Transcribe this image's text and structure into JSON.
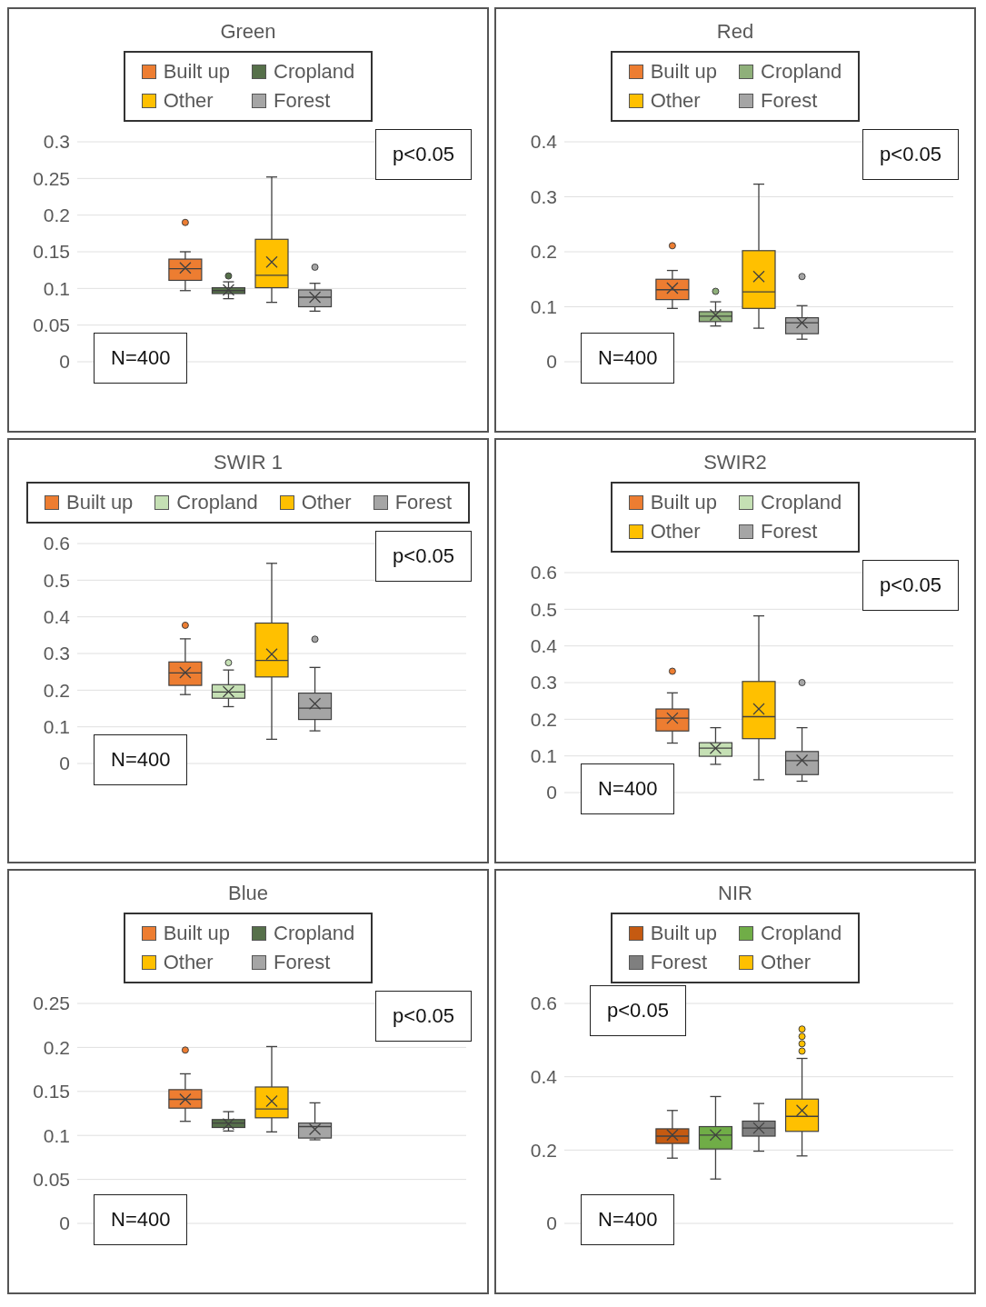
{
  "chart_data": [
    {
      "type": "box",
      "title": "Green",
      "categories": [
        null
      ],
      "ylim": [
        0,
        0.3
      ],
      "yticks": [
        0,
        0.05,
        0.1,
        0.15,
        0.2,
        0.25,
        0.3
      ],
      "grid": "y",
      "legend": "top",
      "annotations": [
        "p<0.05",
        "N=400"
      ],
      "series": [
        {
          "name": "Built up",
          "color": "#ed7d31",
          "boxes": [
            {
              "low": 0.097,
              "q1": 0.111,
              "median": 0.127,
              "q3": 0.14,
              "high": 0.15,
              "mean": 0.128,
              "outliers": [
                0.19
              ]
            }
          ]
        },
        {
          "name": "Cropland",
          "color": "#56704a",
          "boxes": [
            {
              "low": 0.086,
              "q1": 0.093,
              "median": 0.097,
              "q3": 0.101,
              "high": 0.109,
              "mean": 0.098,
              "outliers": [
                0.117
              ]
            }
          ]
        },
        {
          "name": "Other",
          "color": "#ffc000",
          "boxes": [
            {
              "low": 0.081,
              "q1": 0.101,
              "median": 0.118,
              "q3": 0.167,
              "high": 0.252,
              "mean": 0.136
            }
          ]
        },
        {
          "name": "Forest",
          "color": "#a5a5a5",
          "boxes": [
            {
              "low": 0.069,
              "q1": 0.075,
              "median": 0.088,
              "q3": 0.098,
              "high": 0.107,
              "mean": 0.088,
              "outliers": [
                0.129
              ]
            }
          ]
        }
      ]
    },
    {
      "type": "box",
      "title": "Red",
      "categories": [
        null
      ],
      "ylim": [
        0,
        0.4
      ],
      "yticks": [
        0,
        0.1,
        0.2,
        0.3,
        0.4
      ],
      "grid": "y",
      "legend": "top",
      "annotations": [
        "p<0.05",
        "N=400"
      ],
      "series": [
        {
          "name": "Built up",
          "color": "#ed7d31",
          "boxes": [
            {
              "low": 0.097,
              "q1": 0.113,
              "median": 0.131,
              "q3": 0.15,
              "high": 0.166,
              "mean": 0.134,
              "outliers": [
                0.211
              ]
            }
          ]
        },
        {
          "name": "Cropland",
          "color": "#8fb07a",
          "boxes": [
            {
              "low": 0.065,
              "q1": 0.073,
              "median": 0.083,
              "q3": 0.091,
              "high": 0.109,
              "mean": 0.085,
              "outliers": [
                0.128
              ]
            }
          ]
        },
        {
          "name": "Other",
          "color": "#ffc000",
          "boxes": [
            {
              "low": 0.061,
              "q1": 0.097,
              "median": 0.127,
              "q3": 0.202,
              "high": 0.323,
              "mean": 0.155
            }
          ]
        },
        {
          "name": "Forest",
          "color": "#a5a5a5",
          "boxes": [
            {
              "low": 0.041,
              "q1": 0.051,
              "median": 0.071,
              "q3": 0.08,
              "high": 0.102,
              "mean": 0.071,
              "outliers": [
                0.155
              ]
            }
          ]
        }
      ]
    },
    {
      "type": "box",
      "title": "SWIR 1",
      "categories": [
        null
      ],
      "ylim": [
        0,
        0.6
      ],
      "yticks": [
        0,
        0.1,
        0.2,
        0.3,
        0.4,
        0.5,
        0.6
      ],
      "grid": "y",
      "legend": "top",
      "annotations": [
        "p<0.05",
        "N=400"
      ],
      "series": [
        {
          "name": "Built up",
          "color": "#ed7d31",
          "boxes": [
            {
              "low": 0.188,
              "q1": 0.213,
              "median": 0.247,
              "q3": 0.277,
              "high": 0.34,
              "mean": 0.248,
              "outliers": [
                0.377
              ]
            }
          ]
        },
        {
          "name": "Cropland",
          "color": "#c5e0b4",
          "boxes": [
            {
              "low": 0.155,
              "q1": 0.178,
              "median": 0.195,
              "q3": 0.215,
              "high": 0.255,
              "mean": 0.196,
              "outliers": [
                0.275
              ]
            }
          ]
        },
        {
          "name": "Other",
          "color": "#ffc000",
          "boxes": [
            {
              "low": 0.066,
              "q1": 0.236,
              "median": 0.281,
              "q3": 0.383,
              "high": 0.546,
              "mean": 0.298
            }
          ]
        },
        {
          "name": "Forest",
          "color": "#a5a5a5",
          "boxes": [
            {
              "low": 0.089,
              "q1": 0.12,
              "median": 0.151,
              "q3": 0.192,
              "high": 0.262,
              "mean": 0.163,
              "outliers": [
                0.339
              ]
            }
          ]
        }
      ]
    },
    {
      "type": "box",
      "title": "SWIR2",
      "categories": [
        null
      ],
      "ylim": [
        0,
        0.6
      ],
      "yticks": [
        0,
        0.1,
        0.2,
        0.3,
        0.4,
        0.5,
        0.6
      ],
      "grid": "y",
      "legend": "top",
      "annotations": [
        "p<0.05",
        "N=400"
      ],
      "series": [
        {
          "name": "Built up",
          "color": "#ed7d31",
          "boxes": [
            {
              "low": 0.135,
              "q1": 0.168,
              "median": 0.203,
              "q3": 0.228,
              "high": 0.272,
              "mean": 0.203,
              "outliers": [
                0.331
              ]
            }
          ]
        },
        {
          "name": "Cropland",
          "color": "#c5e0b4",
          "boxes": [
            {
              "low": 0.077,
              "q1": 0.099,
              "median": 0.121,
              "q3": 0.136,
              "high": 0.177,
              "mean": 0.121
            }
          ]
        },
        {
          "name": "Other",
          "color": "#ffc000",
          "boxes": [
            {
              "low": 0.035,
              "q1": 0.147,
              "median": 0.207,
              "q3": 0.303,
              "high": 0.482,
              "mean": 0.228
            }
          ]
        },
        {
          "name": "Forest",
          "color": "#a5a5a5",
          "boxes": [
            {
              "low": 0.031,
              "q1": 0.049,
              "median": 0.087,
              "q3": 0.112,
              "high": 0.177,
              "mean": 0.088,
              "outliers": [
                0.3
              ]
            }
          ]
        }
      ]
    },
    {
      "type": "box",
      "title": "Blue",
      "categories": [
        null
      ],
      "ylim": [
        0,
        0.25
      ],
      "yticks": [
        0,
        0.05,
        0.1,
        0.15,
        0.2,
        0.25
      ],
      "grid": "y",
      "legend": "top",
      "annotations": [
        "p<0.05",
        "N=400"
      ],
      "series": [
        {
          "name": "Built up",
          "color": "#ed7d31",
          "boxes": [
            {
              "low": 0.116,
              "q1": 0.131,
              "median": 0.141,
              "q3": 0.152,
              "high": 0.17,
              "mean": 0.141,
              "outliers": [
                0.197
              ]
            }
          ]
        },
        {
          "name": "Cropland",
          "color": "#56704a",
          "boxes": [
            {
              "low": 0.105,
              "q1": 0.109,
              "median": 0.114,
              "q3": 0.118,
              "high": 0.127,
              "mean": 0.113
            }
          ]
        },
        {
          "name": "Other",
          "color": "#ffc000",
          "boxes": [
            {
              "low": 0.104,
              "q1": 0.12,
              "median": 0.13,
              "q3": 0.155,
              "high": 0.201,
              "mean": 0.139
            }
          ]
        },
        {
          "name": "Forest",
          "color": "#a5a5a5",
          "boxes": [
            {
              "low": 0.095,
              "q1": 0.097,
              "median": 0.11,
              "q3": 0.114,
              "high": 0.137,
              "mean": 0.107
            }
          ]
        }
      ]
    },
    {
      "type": "box",
      "title": "NIR",
      "categories": [
        null
      ],
      "ylim": [
        0,
        0.6
      ],
      "yticks": [
        0,
        0.2,
        0.4,
        0.6
      ],
      "grid": "y",
      "legend": "top",
      "annotations": [
        "p<0.05",
        "N=400"
      ],
      "series": [
        {
          "name": "Built up",
          "color": "#c55a11",
          "boxes": [
            {
              "low": 0.178,
              "q1": 0.218,
              "median": 0.238,
              "q3": 0.258,
              "high": 0.308,
              "mean": 0.241
            }
          ]
        },
        {
          "name": "Cropland",
          "color": "#70ad47",
          "boxes": [
            {
              "low": 0.121,
              "q1": 0.203,
              "median": 0.241,
              "q3": 0.264,
              "high": 0.346,
              "mean": 0.241
            }
          ]
        },
        {
          "name": "Forest",
          "color": "#7f7f7f",
          "boxes": [
            {
              "low": 0.197,
              "q1": 0.238,
              "median": 0.26,
              "q3": 0.279,
              "high": 0.327,
              "mean": 0.26
            }
          ]
        },
        {
          "name": "Other",
          "color": "#ffc000",
          "boxes": [
            {
              "low": 0.184,
              "q1": 0.251,
              "median": 0.292,
              "q3": 0.339,
              "high": 0.45,
              "mean": 0.308,
              "outliers": [
                0.47,
                0.49,
                0.51,
                0.53
              ]
            }
          ]
        }
      ]
    }
  ]
}
